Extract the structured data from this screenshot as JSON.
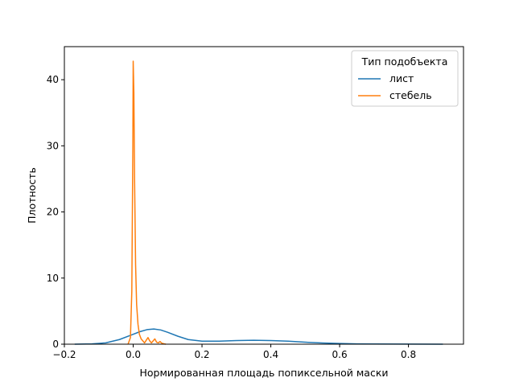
{
  "chart_data": {
    "type": "line",
    "title": "",
    "xlabel": "Нормированная площадь попиксельной маски",
    "ylabel": "Плотность",
    "xlim": [
      -0.2,
      0.96
    ],
    "ylim": [
      0,
      45
    ],
    "xticks": [
      -0.2,
      0.0,
      0.2,
      0.4,
      0.6,
      0.8
    ],
    "xtick_labels": [
      "−0.2",
      "0.0",
      "0.2",
      "0.4",
      "0.6",
      "0.8"
    ],
    "yticks": [
      0,
      10,
      20,
      30,
      40
    ],
    "ytick_labels": [
      "0",
      "10",
      "20",
      "30",
      "40"
    ],
    "grid": false,
    "legend": {
      "title": "Тип подобъекта",
      "placement": "top-right"
    },
    "series": [
      {
        "name": "лист",
        "color": "#1f77b4",
        "points": [
          [
            -0.17,
            0.0
          ],
          [
            -0.12,
            0.05
          ],
          [
            -0.08,
            0.2
          ],
          [
            -0.04,
            0.7
          ],
          [
            0.0,
            1.5
          ],
          [
            0.02,
            1.9
          ],
          [
            0.04,
            2.2
          ],
          [
            0.06,
            2.3
          ],
          [
            0.08,
            2.15
          ],
          [
            0.1,
            1.8
          ],
          [
            0.13,
            1.2
          ],
          [
            0.16,
            0.7
          ],
          [
            0.2,
            0.45
          ],
          [
            0.25,
            0.45
          ],
          [
            0.3,
            0.55
          ],
          [
            0.35,
            0.6
          ],
          [
            0.4,
            0.55
          ],
          [
            0.45,
            0.45
          ],
          [
            0.5,
            0.3
          ],
          [
            0.55,
            0.18
          ],
          [
            0.6,
            0.1
          ],
          [
            0.65,
            0.05
          ],
          [
            0.7,
            0.03
          ],
          [
            0.8,
            0.01
          ],
          [
            0.9,
            0.0
          ]
        ]
      },
      {
        "name": "стебель",
        "color": "#ff7f0e",
        "points": [
          [
            -0.015,
            0.0
          ],
          [
            -0.008,
            1.0
          ],
          [
            -0.004,
            8.0
          ],
          [
            -0.001,
            30.0
          ],
          [
            0.0,
            42.8
          ],
          [
            0.002,
            38.0
          ],
          [
            0.004,
            25.0
          ],
          [
            0.007,
            12.0
          ],
          [
            0.01,
            6.0
          ],
          [
            0.014,
            3.0
          ],
          [
            0.018,
            1.5
          ],
          [
            0.023,
            0.8
          ],
          [
            0.028,
            0.5
          ],
          [
            0.033,
            0.2
          ],
          [
            0.038,
            0.6
          ],
          [
            0.043,
            1.0
          ],
          [
            0.048,
            0.5
          ],
          [
            0.053,
            0.2
          ],
          [
            0.058,
            0.5
          ],
          [
            0.063,
            0.8
          ],
          [
            0.068,
            0.3
          ],
          [
            0.073,
            0.2
          ],
          [
            0.078,
            0.4
          ],
          [
            0.083,
            0.15
          ],
          [
            0.09,
            0.05
          ],
          [
            0.095,
            0.0
          ]
        ]
      }
    ]
  }
}
